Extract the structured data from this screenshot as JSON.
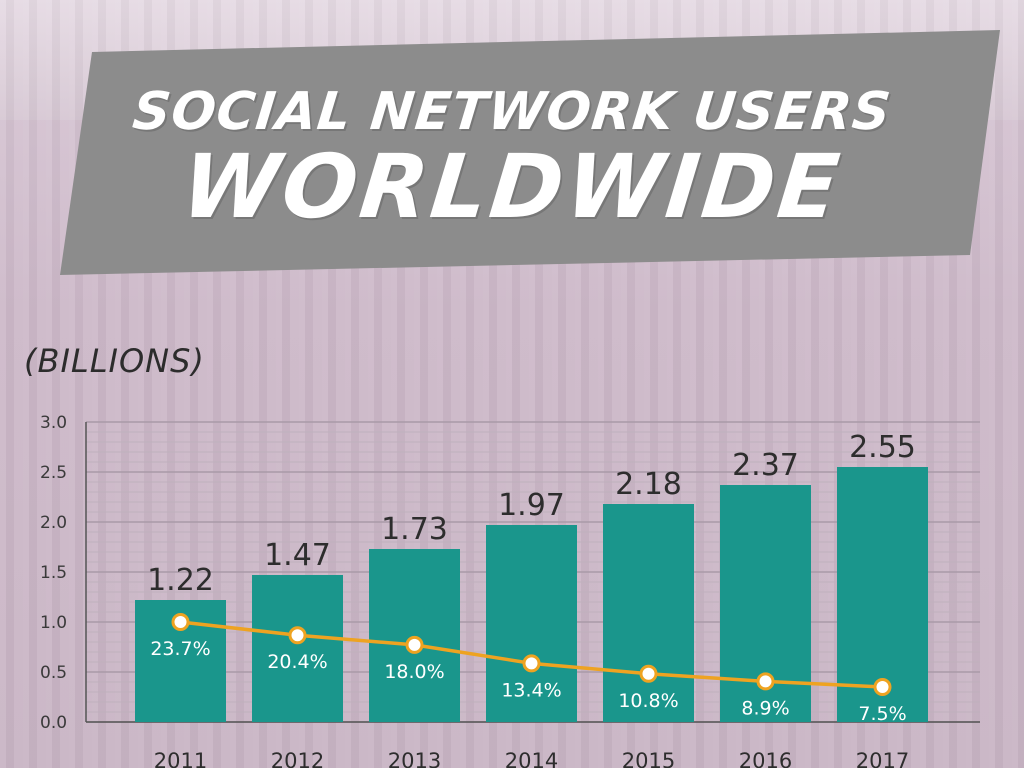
{
  "title_line1": "SOCIAL NETWORK USERS",
  "title_line2": "WORLDWIDE",
  "unit": "(BILLIONS)",
  "colors": {
    "bar": "#1a968c",
    "line": "#eea321",
    "banner": "#8f8f8f"
  },
  "chart_data": {
    "type": "bar",
    "title": "SOCIAL NETWORK USERS WORLDWIDE",
    "ylabel": "(BILLIONS)",
    "ylim": [
      0,
      3.0
    ],
    "yticks": [
      "3.0",
      "2.5",
      "2.0",
      "1.5",
      "1.0",
      "0.5",
      "0.0"
    ],
    "grid": true,
    "categories": [
      "2011",
      "2012",
      "2013",
      "2014",
      "2015",
      "2016",
      "2017"
    ],
    "values": [
      1.22,
      1.47,
      1.73,
      1.97,
      2.18,
      2.37,
      2.55
    ],
    "value_labels": [
      "1.22",
      "1.47",
      "1.73",
      "1.97",
      "2.18",
      "2.37",
      "2.55"
    ],
    "growth": {
      "type": "line",
      "values": [
        23.7,
        20.4,
        18.0,
        13.4,
        10.8,
        8.9,
        7.5
      ],
      "labels": [
        "23.7%",
        "20.4%",
        "18.0%",
        "13.4%",
        "10.8%",
        "8.9%",
        "7.5%"
      ]
    }
  }
}
